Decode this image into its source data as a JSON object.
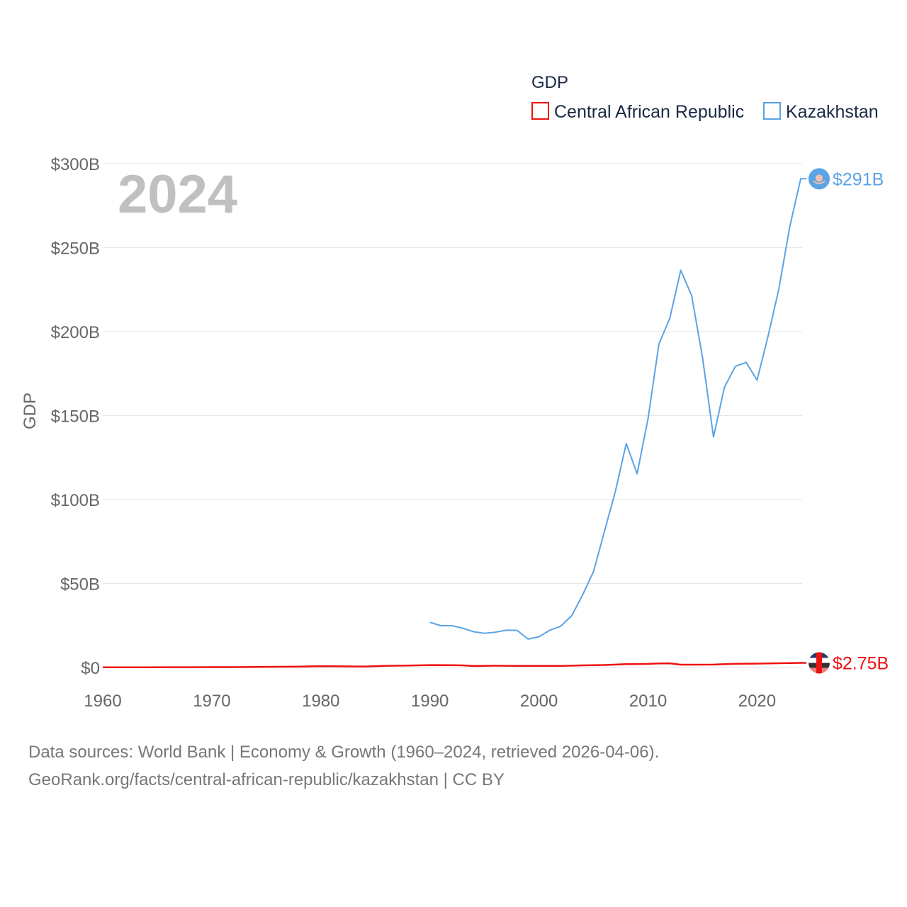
{
  "chart_data": {
    "type": "line",
    "title": "GDP",
    "ylabel": "GDP",
    "xlabel": "",
    "year_label": "2024",
    "xlim": [
      1960,
      2024
    ],
    "ylim": [
      0,
      300
    ],
    "x_ticks": [
      {
        "value": 1960,
        "label": "1960"
      },
      {
        "value": 1970,
        "label": "1970"
      },
      {
        "value": 1980,
        "label": "1980"
      },
      {
        "value": 1990,
        "label": "1990"
      },
      {
        "value": 2000,
        "label": "2000"
      },
      {
        "value": 2010,
        "label": "2010"
      },
      {
        "value": 2020,
        "label": "2020"
      }
    ],
    "y_ticks": [
      {
        "value": 0,
        "label": "$0"
      },
      {
        "value": 50,
        "label": "$50B"
      },
      {
        "value": 100,
        "label": "$100B"
      },
      {
        "value": 150,
        "label": "$150B"
      },
      {
        "value": 200,
        "label": "$200B"
      },
      {
        "value": 250,
        "label": "$250B"
      },
      {
        "value": 300,
        "label": "$300B"
      }
    ],
    "legend_position": "top-right",
    "grid": true,
    "series": [
      {
        "name": "Central African Republic",
        "color": "#ee1111",
        "end_label": "$2.75B",
        "x": [
          1960,
          1962,
          1964,
          1966,
          1968,
          1970,
          1972,
          1974,
          1976,
          1978,
          1980,
          1982,
          1984,
          1986,
          1988,
          1990,
          1992,
          1993,
          1994,
          1996,
          1998,
          2000,
          2002,
          2004,
          2006,
          2008,
          2010,
          2011,
          2012,
          2013,
          2014,
          2016,
          2018,
          2020,
          2022,
          2024
        ],
        "y": [
          0.11,
          0.12,
          0.14,
          0.16,
          0.17,
          0.19,
          0.23,
          0.32,
          0.43,
          0.55,
          0.8,
          0.66,
          0.61,
          1.0,
          1.2,
          1.44,
          1.39,
          1.28,
          0.87,
          1.06,
          0.99,
          0.91,
          0.99,
          1.27,
          1.46,
          1.99,
          2.14,
          2.44,
          2.5,
          1.69,
          1.7,
          1.74,
          2.22,
          2.33,
          2.52,
          2.75
        ]
      },
      {
        "name": "Kazakhstan",
        "color": "#5ca3e6",
        "end_label": "$291B",
        "x": [
          1990,
          1991,
          1992,
          1993,
          1994,
          1995,
          1996,
          1997,
          1998,
          1999,
          2000,
          2001,
          2002,
          2003,
          2004,
          2005,
          2006,
          2007,
          2008,
          2009,
          2010,
          2011,
          2012,
          2013,
          2014,
          2015,
          2016,
          2017,
          2018,
          2019,
          2020,
          2021,
          2022,
          2023,
          2024
        ],
        "y": [
          26.9,
          24.9,
          24.9,
          23.4,
          21.3,
          20.4,
          21.0,
          22.2,
          22.1,
          16.9,
          18.3,
          22.2,
          24.6,
          30.8,
          43.2,
          57.1,
          81.0,
          104.8,
          133.4,
          115.3,
          148.0,
          192.6,
          208.0,
          236.6,
          221.4,
          184.4,
          137.3,
          166.8,
          179.3,
          181.7,
          171.1,
          197.1,
          225.5,
          262.6,
          291.0
        ]
      }
    ]
  },
  "source": {
    "line1": "Data sources: World Bank | Economy & Growth (1960–2024, retrieved 2026-04-06).",
    "line2": "GeoRank.org/facts/central-african-republic/kazakhstan | CC BY"
  }
}
